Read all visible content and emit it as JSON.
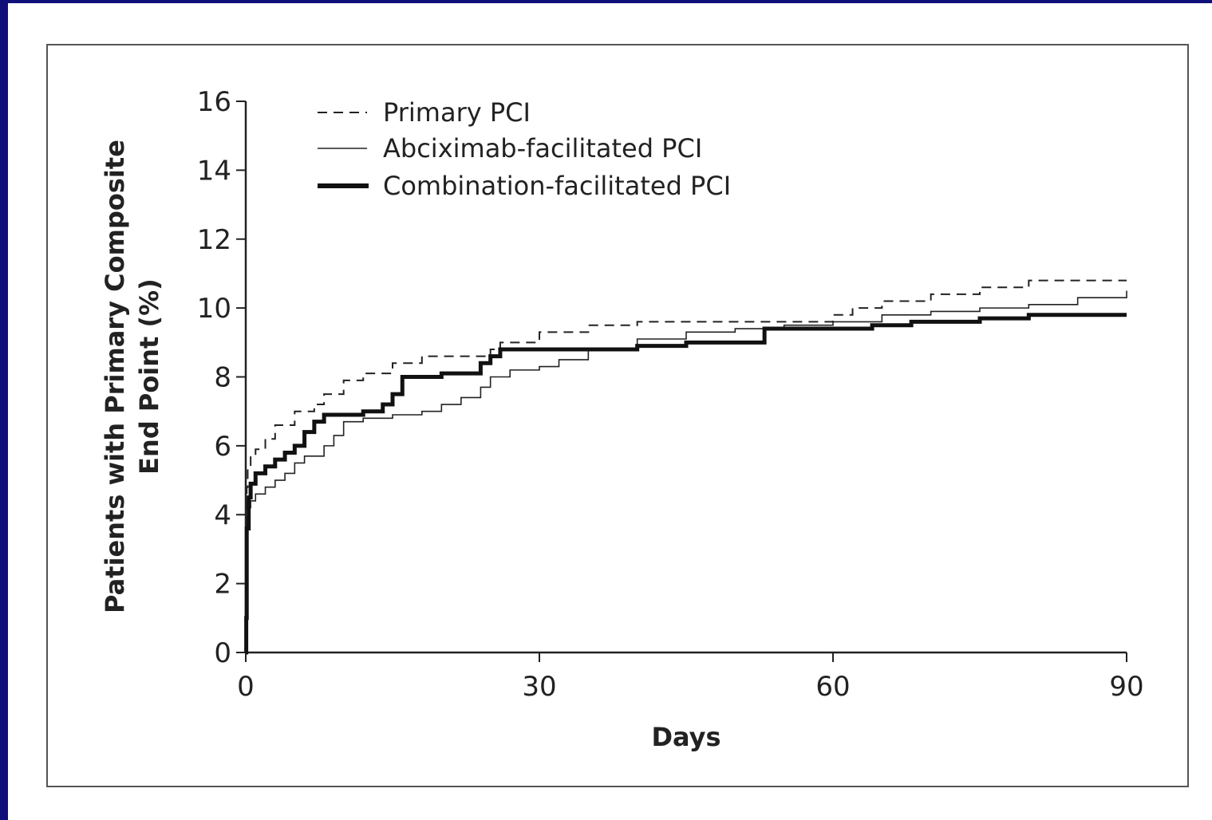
{
  "chart_data": {
    "type": "line",
    "title": "",
    "xlabel": "Days",
    "ylabel_line1": "Patients with Primary Composite",
    "ylabel_line2": "End Point (%)",
    "xlim": [
      0,
      90
    ],
    "ylim": [
      0,
      16
    ],
    "xticks": [
      0,
      30,
      60,
      90
    ],
    "xtick_labels": [
      "0",
      "30",
      "60",
      "90"
    ],
    "yticks": [
      0,
      2,
      4,
      6,
      8,
      10,
      12,
      14,
      16
    ],
    "ytick_labels": [
      "0",
      "2",
      "4",
      "6",
      "8",
      "10",
      "12",
      "14",
      "16"
    ],
    "grid": false,
    "legend_position": "top-left",
    "series": [
      {
        "name": "Primary PCI",
        "style": "dashed",
        "color": "#222222",
        "x": [
          0,
          0.1,
          0.2,
          0.5,
          1,
          2,
          3,
          5,
          7,
          8,
          10,
          12,
          15,
          18,
          22,
          25,
          26,
          30,
          35,
          40,
          45,
          50,
          55,
          60,
          62,
          65,
          70,
          75,
          80,
          85,
          90
        ],
        "y": [
          0,
          4.8,
          5.4,
          5.7,
          5.9,
          6.2,
          6.6,
          7.0,
          7.2,
          7.5,
          7.9,
          8.1,
          8.4,
          8.6,
          8.6,
          8.8,
          9.0,
          9.3,
          9.5,
          9.6,
          9.6,
          9.6,
          9.6,
          9.8,
          10.0,
          10.2,
          10.4,
          10.6,
          10.8,
          10.8,
          10.8
        ]
      },
      {
        "name": "Abciximab-facilitated PCI",
        "style": "thin",
        "color": "#222222",
        "x": [
          0,
          0.1,
          0.2,
          0.5,
          1,
          2,
          3,
          4,
          5,
          6,
          8,
          9,
          10,
          12,
          15,
          18,
          20,
          22,
          24,
          25,
          27,
          30,
          32,
          35,
          40,
          45,
          50,
          55,
          60,
          65,
          70,
          75,
          80,
          85,
          90
        ],
        "y": [
          0,
          3.8,
          4.2,
          4.4,
          4.6,
          4.8,
          5.0,
          5.2,
          5.5,
          5.7,
          6.0,
          6.3,
          6.7,
          6.8,
          6.9,
          7.0,
          7.2,
          7.4,
          7.7,
          8.0,
          8.2,
          8.3,
          8.5,
          8.8,
          9.1,
          9.3,
          9.4,
          9.5,
          9.6,
          9.8,
          9.9,
          10.0,
          10.1,
          10.3,
          10.5
        ]
      },
      {
        "name": "Combination-facilitated PCI",
        "style": "thick",
        "color": "#111111",
        "x": [
          0,
          0.05,
          0.1,
          0.3,
          0.5,
          1,
          2,
          3,
          4,
          5,
          6,
          7,
          8,
          10,
          12,
          14,
          15,
          16,
          18,
          20,
          24,
          25,
          26,
          30,
          35,
          40,
          45,
          50,
          53,
          55,
          60,
          64,
          68,
          75,
          80,
          90
        ],
        "y": [
          0,
          1.0,
          3.6,
          4.5,
          4.9,
          5.2,
          5.4,
          5.6,
          5.8,
          6.0,
          6.4,
          6.7,
          6.9,
          6.9,
          7.0,
          7.2,
          7.5,
          8.0,
          8.0,
          8.1,
          8.4,
          8.6,
          8.8,
          8.8,
          8.8,
          8.9,
          9.0,
          9.0,
          9.4,
          9.4,
          9.4,
          9.5,
          9.6,
          9.7,
          9.8,
          9.8
        ]
      }
    ]
  }
}
